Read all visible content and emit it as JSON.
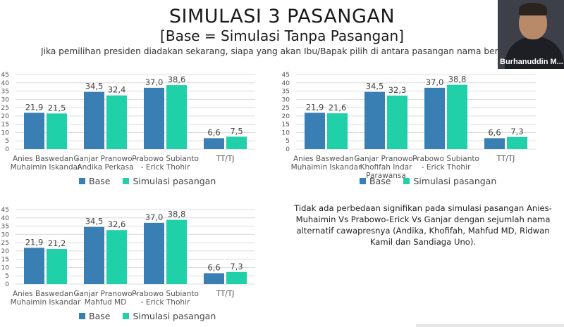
{
  "header": {
    "title": "SIMULASI 3 PASANGAN",
    "subtitle": "[Base = Simulasi Tanpa Pasangan]",
    "question": "Jika pemilihan presiden diadakan sekarang, siapa yang akan Ibu/Bapak pilih di antara pasangan nama berikut?"
  },
  "video": {
    "name": "Burhanuddin M..."
  },
  "note": "Tidak ada perbedaan signifikan pada simulasi pasangan Anies-Muhaimin Vs Prabowo-Erick Vs Ganjar dengan sejumlah nama alternatif cawapresnya (Andika, Khofifah, Mahfud MD, Ridwan Kamil dan Sandiaga Uno).",
  "colors": {
    "base": "#3a7fb4",
    "simulasi": "#1fd0a8",
    "grid": "#dcdcdc",
    "axis_text": "#555555"
  },
  "chart_data": [
    {
      "type": "bar",
      "categories": [
        [
          "Anies Baswedan -",
          "Muhaimin Iskandar"
        ],
        [
          "Ganjar Pranowo -",
          "Andika Perkasa"
        ],
        [
          "Prabowo Subianto",
          "- Erick Thohir"
        ],
        [
          "TT/TJ"
        ]
      ],
      "series": [
        {
          "name": "Base",
          "values": [
            21.9,
            34.5,
            37.0,
            6.6
          ],
          "labels": [
            "21,9",
            "34,5",
            "37,0",
            "6,6"
          ]
        },
        {
          "name": "Simulasi pasangan",
          "values": [
            21.5,
            32.4,
            38.6,
            7.5
          ],
          "labels": [
            "21,5",
            "32,4",
            "38,6",
            "7,5"
          ]
        }
      ],
      "ylim": [
        0,
        45
      ],
      "yticks": [
        "0",
        "5",
        "10",
        "15",
        "20",
        "25",
        "30",
        "35",
        "40",
        "45"
      ],
      "legend": [
        "Base",
        "Simulasi pasangan"
      ]
    },
    {
      "type": "bar",
      "categories": [
        [
          "Anies Baswedan -",
          "Muhaimin Iskandar"
        ],
        [
          "Ganjar Pranowo -",
          "Khofifah Indar",
          "Parawansa"
        ],
        [
          "Prabowo Subianto",
          "- Erick Thohir"
        ],
        [
          "TT/TJ"
        ]
      ],
      "series": [
        {
          "name": "Base",
          "values": [
            21.9,
            34.5,
            37.0,
            6.6
          ],
          "labels": [
            "21,9",
            "34,5",
            "37,0",
            "6,6"
          ]
        },
        {
          "name": "Simulasi pasangan",
          "values": [
            21.6,
            32.3,
            38.8,
            7.3
          ],
          "labels": [
            "21,6",
            "32,3",
            "38,8",
            "7,3"
          ]
        }
      ],
      "ylim": [
        0,
        45
      ],
      "yticks": [
        "0",
        "5",
        "10",
        "15",
        "20",
        "25",
        "30",
        "35",
        "40",
        "45"
      ],
      "legend": [
        "Base",
        "Simulasi pasangan"
      ]
    },
    {
      "type": "bar",
      "categories": [
        [
          "Anies Baswedan -",
          "Muhaimin Iskandar"
        ],
        [
          "Ganjar Pranowo -",
          "Mahfud MD"
        ],
        [
          "Prabowo Subianto",
          "- Erick Thohir"
        ],
        [
          "TT/TJ"
        ]
      ],
      "series": [
        {
          "name": "Base",
          "values": [
            21.9,
            34.5,
            37.0,
            6.6
          ],
          "labels": [
            "21,9",
            "34,5",
            "37,0",
            "6,6"
          ]
        },
        {
          "name": "Simulasi pasangan",
          "values": [
            21.2,
            32.6,
            38.8,
            7.3
          ],
          "labels": [
            "21,2",
            "32,6",
            "38,8",
            "7,3"
          ]
        }
      ],
      "ylim": [
        0,
        45
      ],
      "yticks": [
        "0",
        "5",
        "10",
        "15",
        "20",
        "25",
        "30",
        "35",
        "40",
        "45"
      ],
      "legend": [
        "Base",
        "Simulasi pasangan"
      ]
    }
  ]
}
